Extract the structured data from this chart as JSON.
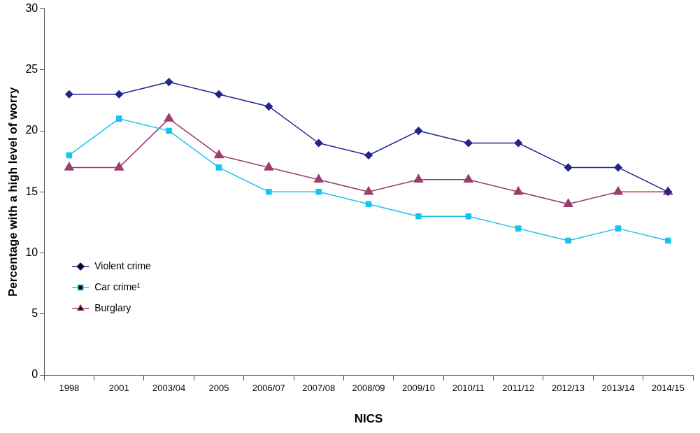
{
  "chart_data": {
    "type": "line",
    "xlabel": "NICS",
    "ylabel": "Percentage with a high level of worry",
    "categories": [
      "1998",
      "2001",
      "2003/04",
      "2005",
      "2006/07",
      "2007/08",
      "2008/09",
      "2009/10",
      "2010/11",
      "2011/12",
      "2012/13",
      "2013/14",
      "2014/15"
    ],
    "series": [
      {
        "name": "Violent crime",
        "color": "#24248f",
        "marker": "diamond",
        "values": [
          23,
          23,
          24,
          23,
          22,
          19,
          18,
          20,
          19,
          19,
          17,
          17,
          15
        ]
      },
      {
        "name": "Car crime¹",
        "color": "#17c3f0",
        "marker": "square",
        "values": [
          18,
          21,
          20,
          17,
          15,
          15,
          14,
          13,
          13,
          12,
          11,
          12,
          11
        ]
      },
      {
        "name": "Burglary",
        "color": "#9c3d6d",
        "marker": "triangle",
        "values": [
          17,
          17,
          21,
          18,
          17,
          16,
          15,
          16,
          16,
          15,
          14,
          15,
          15
        ]
      }
    ],
    "ylim": [
      0,
      30
    ],
    "yticks": [
      0,
      5,
      10,
      15,
      20,
      25,
      30
    ],
    "grid": false,
    "legend": "bottom left",
    "line_style": "solid"
  }
}
